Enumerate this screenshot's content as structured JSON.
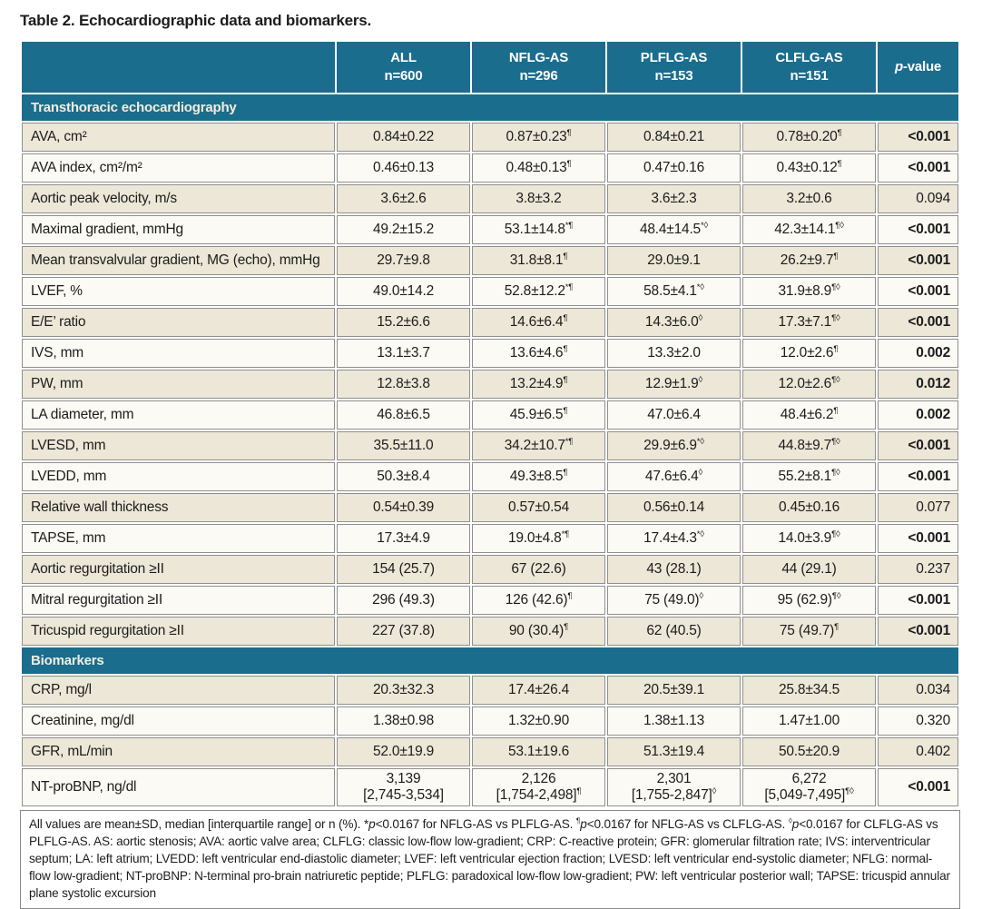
{
  "title": "Table 2. Echocardiographic data and biomarkers.",
  "colors": {
    "header_bg": "#1a6d8d",
    "row_beige": "#ece7d7",
    "row_plain": "#fbfaf4",
    "cell_border": "#8f8f8f"
  },
  "header": {
    "columns": [
      {
        "line1": "ALL",
        "line2": "n=600"
      },
      {
        "line1": "NFLG-AS",
        "line2": "n=296"
      },
      {
        "line1": "PLFLG-AS",
        "line2": "n=153"
      },
      {
        "line1": "CLFLG-AS",
        "line2": "n=151"
      }
    ],
    "pvalue": {
      "italic": "p",
      "rest": "-value"
    }
  },
  "sections": [
    {
      "label": "Transthoracic echocardiography",
      "rows": [
        {
          "label": "AVA, cm²",
          "values": [
            "0.84±0.22",
            "0.87±0.23¶",
            "0.84±0.21",
            "0.78±0.20¶"
          ],
          "p": "<0.001",
          "p_bold": true
        },
        {
          "label": "AVA index, cm²/m²",
          "values": [
            "0.46±0.13",
            "0.48±0.13¶",
            "0.47±0.16",
            "0.43±0.12¶"
          ],
          "p": "<0.001",
          "p_bold": true
        },
        {
          "label": "Aortic peak velocity, m/s",
          "values": [
            "3.6±2.6",
            "3.8±3.2",
            "3.6±2.3",
            "3.2±0.6"
          ],
          "p": "0.094",
          "p_bold": false
        },
        {
          "label": "Maximal gradient, mmHg",
          "values": [
            "49.2±15.2",
            "53.1±14.8*¶",
            "48.4±14.5*◊",
            "42.3±14.1¶◊"
          ],
          "p": "<0.001",
          "p_bold": true
        },
        {
          "label": "Mean transvalvular gradient, MG (echo), mmHg",
          "values": [
            "29.7±9.8",
            "31.8±8.1¶",
            "29.0±9.1",
            "26.2±9.7¶"
          ],
          "p": "<0.001",
          "p_bold": true
        },
        {
          "label": "LVEF, %",
          "values": [
            "49.0±14.2",
            "52.8±12.2*¶",
            "58.5±4.1*◊",
            "31.9±8.9¶◊"
          ],
          "p": "<0.001",
          "p_bold": true
        },
        {
          "label": "E/E’ ratio",
          "values": [
            "15.2±6.6",
            "14.6±6.4¶",
            "14.3±6.0◊",
            "17.3±7.1¶◊"
          ],
          "p": "<0.001",
          "p_bold": true
        },
        {
          "label": "IVS, mm",
          "values": [
            "13.1±3.7",
            "13.6±4.6¶",
            "13.3±2.0",
            "12.0±2.6¶"
          ],
          "p": "0.002",
          "p_bold": true
        },
        {
          "label": "PW, mm",
          "values": [
            "12.8±3.8",
            "13.2±4.9¶",
            "12.9±1.9◊",
            "12.0±2.6¶◊"
          ],
          "p": "0.012",
          "p_bold": true
        },
        {
          "label": "LA diameter, mm",
          "values": [
            "46.8±6.5",
            "45.9±6.5¶",
            "47.0±6.4",
            "48.4±6.2¶"
          ],
          "p": "0.002",
          "p_bold": true
        },
        {
          "label": "LVESD, mm",
          "values": [
            "35.5±11.0",
            "34.2±10.7*¶",
            "29.9±6.9*◊",
            "44.8±9.7¶◊"
          ],
          "p": "<0.001",
          "p_bold": true
        },
        {
          "label": "LVEDD, mm",
          "values": [
            "50.3±8.4",
            "49.3±8.5¶",
            "47.6±6.4◊",
            "55.2±8.1¶◊"
          ],
          "p": "<0.001",
          "p_bold": true
        },
        {
          "label": "Relative wall thickness",
          "values": [
            "0.54±0.39",
            "0.57±0.54",
            "0.56±0.14",
            "0.45±0.16"
          ],
          "p": "0.077",
          "p_bold": false
        },
        {
          "label": "TAPSE, mm",
          "values": [
            "17.3±4.9",
            "19.0±4.8*¶",
            "17.4±4.3*◊",
            "14.0±3.9¶◊"
          ],
          "p": "<0.001",
          "p_bold": true
        },
        {
          "label": "Aortic regurgitation ≥II",
          "values": [
            "154 (25.7)",
            "67 (22.6)",
            "43 (28.1)",
            "44 (29.1)"
          ],
          "p": "0.237",
          "p_bold": false
        },
        {
          "label": "Mitral regurgitation ≥II",
          "values": [
            "296 (49.3)",
            "126 (42.6)¶",
            "75 (49.0)◊",
            "95 (62.9)¶◊"
          ],
          "p": "<0.001",
          "p_bold": true
        },
        {
          "label": "Tricuspid regurgitation ≥II",
          "values": [
            "227 (37.8)",
            "90 (30.4)¶",
            "62 (40.5)",
            "75 (49.7)¶"
          ],
          "p": "<0.001",
          "p_bold": true
        }
      ]
    },
    {
      "label": "Biomarkers",
      "rows": [
        {
          "label": "CRP, mg/l",
          "values": [
            "20.3±32.3",
            "17.4±26.4",
            "20.5±39.1",
            "25.8±34.5"
          ],
          "p": "0.034",
          "p_bold": false
        },
        {
          "label": "Creatinine, mg/dl",
          "values": [
            "1.38±0.98",
            "1.32±0.90",
            "1.38±1.13",
            "1.47±1.00"
          ],
          "p": "0.320",
          "p_bold": false
        },
        {
          "label": "GFR, mL/min",
          "values": [
            "52.0±19.9",
            "53.1±19.6",
            "51.3±19.4",
            "50.5±20.9"
          ],
          "p": "0.402",
          "p_bold": false
        },
        {
          "label": "NT-proBNP, ng/dl",
          "values": [
            "3,139\n[2,745-3,534]",
            "2,126\n[1,754-2,498]¶",
            "2,301\n[1,755-2,847]◊",
            "6,272\n[5,049-7,495]¶◊"
          ],
          "p": "<0.001",
          "p_bold": true
        }
      ]
    }
  ],
  "footnote": "All values are mean±SD, median [interquartile range] or n (%). *p<0.0167 for NFLG-AS vs PLFLG-AS. ¶p<0.0167 for NFLG-AS vs CLFLG-AS. ◊p<0.0167 for CLFLG-AS vs PLFLG-AS. AS: aortic stenosis; AVA: aortic valve area; CLFLG: classic low-flow low-gradient; CRP: C-reactive protein; GFR: glomerular filtration rate; IVS: interventricular septum; LA: left atrium; LVEDD: left ventricular end-diastolic diameter; LVEF: left ventricular ejection fraction; LVESD: left ventricular end-systolic diameter; NFLG: normal-flow low-gradient; NT-proBNP: N-terminal pro-brain natriuretic peptide; PLFLG: paradoxical low-flow low-gradient; PW: left ventricular posterior wall; TAPSE: tricuspid annular plane systolic excursion"
}
